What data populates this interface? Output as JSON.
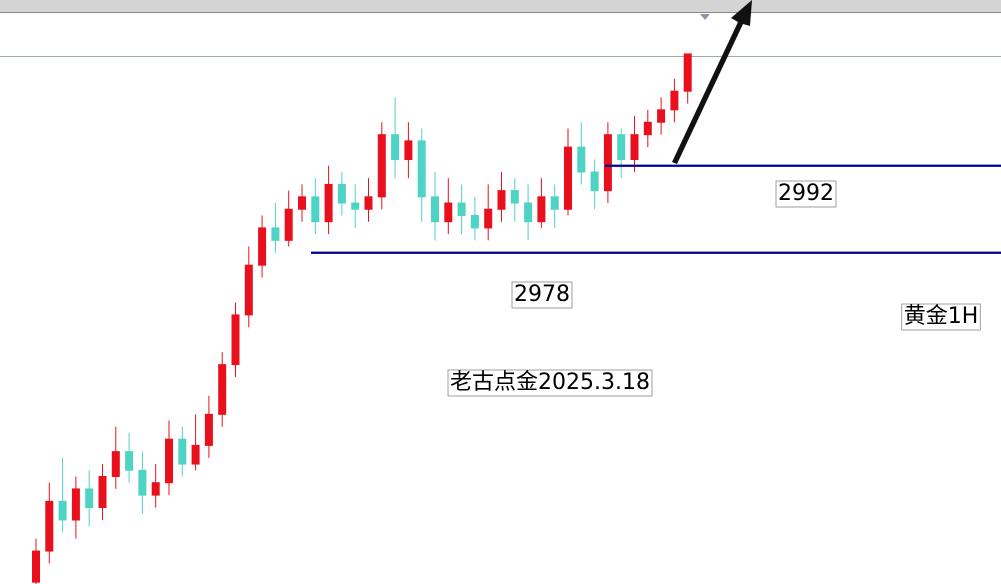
{
  "chart_data": {
    "type": "candlestick",
    "symbol": "黄金1H",
    "watermark": "老古点金2025.3.18",
    "ylim": [
      2924.7,
      3009.5
    ],
    "levels": [
      2992,
      2978
    ],
    "up_color": "#e8101c",
    "down_color": "#4fd3c4",
    "level_color": "#00008b",
    "open": [
      2925,
      2930,
      2938,
      2935,
      2940,
      2937,
      2942,
      2946,
      2943,
      2939,
      2941,
      2948,
      2944,
      2947,
      2952,
      2960,
      2968,
      2976,
      2982,
      2980,
      2985,
      2987,
      2983,
      2989,
      2986,
      2985,
      2987,
      2997,
      2993,
      2996,
      2987,
      2983,
      2986,
      2984,
      2982,
      2985,
      2988,
      2986,
      2983,
      2987,
      2985,
      2995,
      2991,
      2988,
      2997,
      2993,
      2997,
      2999,
      3001,
      3004
    ],
    "high": [
      2932,
      2941,
      2945,
      2942,
      2943,
      2944,
      2950,
      2949,
      2946,
      2944,
      2951,
      2950,
      2952,
      2955,
      2962,
      2970,
      2979,
      2984,
      2986,
      2988,
      2989,
      2990,
      2992,
      2991,
      2989,
      2990,
      2999,
      3003,
      2999,
      2998,
      2991,
      2990,
      2989,
      2987,
      2989,
      2991,
      2990,
      2989,
      2990,
      2989,
      2998,
      2999,
      2993,
      2999,
      2998,
      3000,
      3001,
      3003,
      3006,
      3010
    ],
    "low": [
      2924,
      2928,
      2933,
      2932,
      2934,
      2935,
      2940,
      2941,
      2936,
      2937,
      2939,
      2942,
      2943,
      2945,
      2950,
      2958,
      2966,
      2974,
      2978,
      2979,
      2983,
      2981,
      2981,
      2984,
      2982,
      2983,
      2985,
      2990,
      2990,
      2983,
      2980,
      2981,
      2981,
      2980,
      2980,
      2983,
      2983,
      2980,
      2982,
      2982,
      2984,
      2989,
      2985,
      2986,
      2990,
      2991,
      2995,
      2997,
      2999,
      3002
    ],
    "close": [
      2930,
      2938,
      2935,
      2940,
      2937,
      2942,
      2946,
      2943,
      2939,
      2941,
      2948,
      2944,
      2947,
      2952,
      2960,
      2968,
      2976,
      2982,
      2980,
      2985,
      2987,
      2983,
      2989,
      2986,
      2985,
      2987,
      2997,
      2993,
      2996,
      2987,
      2983,
      2986,
      2984,
      2982,
      2985,
      2988,
      2986,
      2983,
      2987,
      2985,
      2995,
      2991,
      2988,
      2997,
      2993,
      2997,
      2999,
      3001,
      3004,
      3010
    ]
  }
}
